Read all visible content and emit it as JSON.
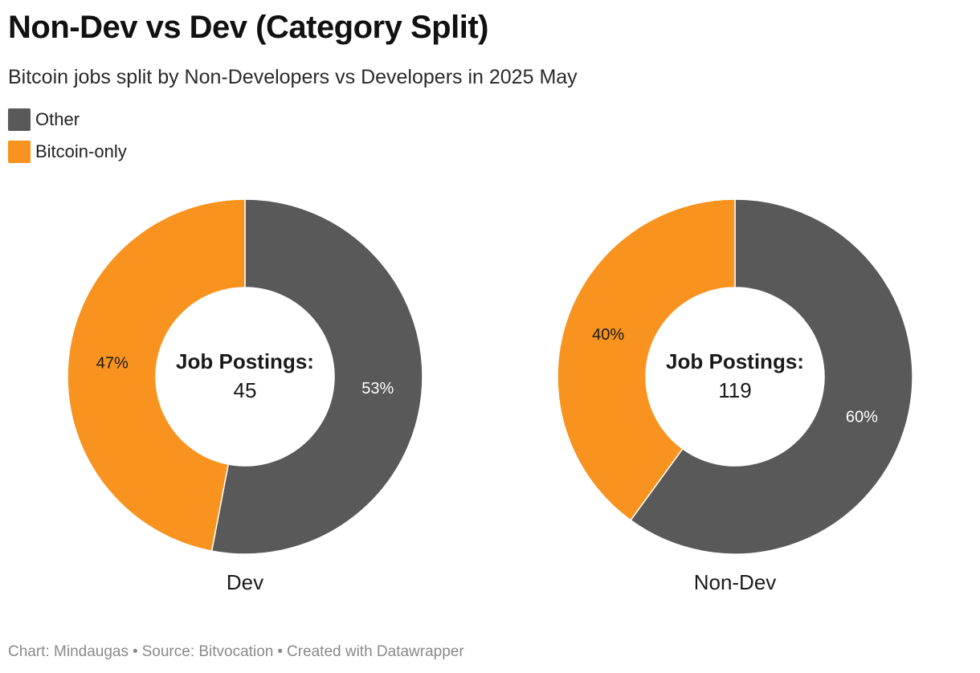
{
  "title": "Non-Dev vs Dev (Category Split)",
  "subtitle": "Bitcoin jobs split by Non-Developers vs Developers in 2025 May",
  "legend": [
    {
      "label": "Other",
      "color": "#595959"
    },
    {
      "label": "Bitcoin-only",
      "color": "#f7931e"
    }
  ],
  "footer": {
    "chart": "Chart: Mindaugas",
    "separator": "•",
    "source": "Source: Bitvocation",
    "created": "Created with Datawrapper"
  },
  "chart_data": [
    {
      "type": "pie",
      "variant": "donut",
      "name": "Dev",
      "center_label": "Job Postings:",
      "center_value": "45",
      "slices": [
        {
          "label": "Other",
          "percent": 53,
          "value_label": "53%",
          "color": "#595959"
        },
        {
          "label": "Bitcoin-only",
          "percent": 47,
          "value_label": "47%",
          "color": "#f7931e"
        }
      ]
    },
    {
      "type": "pie",
      "variant": "donut",
      "name": "Non-Dev",
      "center_label": "Job Postings:",
      "center_value": "119",
      "slices": [
        {
          "label": "Other",
          "percent": 60,
          "value_label": "60%",
          "color": "#595959"
        },
        {
          "label": "Bitcoin-only",
          "percent": 40,
          "value_label": "40%",
          "color": "#f7931e"
        }
      ]
    }
  ]
}
